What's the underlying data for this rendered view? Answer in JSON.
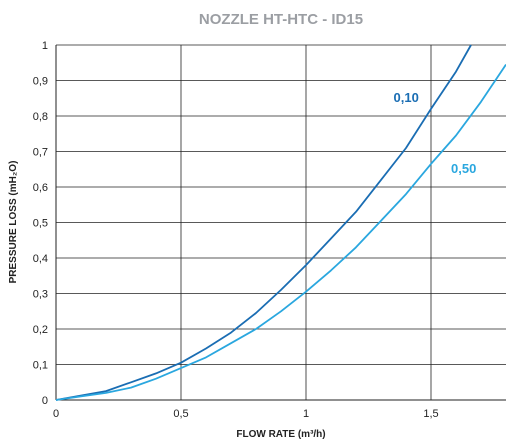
{
  "chart_data": {
    "type": "line",
    "title": "NOZZLE HT-HTC - ID15",
    "xlabel": "FLOW RATE (m³/h)",
    "ylabel": "PRESSURE LOSS (mH₂O)",
    "xlim": [
      0,
      1.8
    ],
    "ylim": [
      0,
      1
    ],
    "x_ticks": [
      0,
      0.5,
      1,
      1.5
    ],
    "x_tick_labels": [
      "0",
      "0,5",
      "1",
      "1,5"
    ],
    "y_ticks": [
      0,
      0.1,
      0.2,
      0.3,
      0.4,
      0.5,
      0.6,
      0.7,
      0.8,
      0.9,
      1
    ],
    "y_tick_labels": [
      "0",
      "0,1",
      "0,2",
      "0,3",
      "0,4",
      "0,5",
      "0,6",
      "0,7",
      "0,8",
      "0,9",
      "1"
    ],
    "grid": true,
    "series": [
      {
        "name": "0,10",
        "color": "#1a6db3",
        "x": [
          0,
          0.2,
          0.3,
          0.4,
          0.5,
          0.6,
          0.7,
          0.8,
          0.9,
          1.0,
          1.1,
          1.2,
          1.3,
          1.4,
          1.5,
          1.6,
          1.66
        ],
        "y": [
          0,
          0.025,
          0.05,
          0.075,
          0.105,
          0.145,
          0.19,
          0.245,
          0.31,
          0.38,
          0.455,
          0.53,
          0.62,
          0.71,
          0.82,
          0.925,
          1.0
        ]
      },
      {
        "name": "0,50",
        "color": "#2aa7df",
        "x": [
          0,
          0.1,
          0.2,
          0.3,
          0.4,
          0.5,
          0.6,
          0.7,
          0.8,
          0.9,
          1.0,
          1.1,
          1.2,
          1.3,
          1.4,
          1.5,
          1.6,
          1.7,
          1.8
        ],
        "y": [
          0,
          0.01,
          0.02,
          0.035,
          0.06,
          0.09,
          0.12,
          0.16,
          0.2,
          0.25,
          0.305,
          0.365,
          0.43,
          0.505,
          0.58,
          0.665,
          0.745,
          0.84,
          0.945
        ]
      }
    ]
  }
}
